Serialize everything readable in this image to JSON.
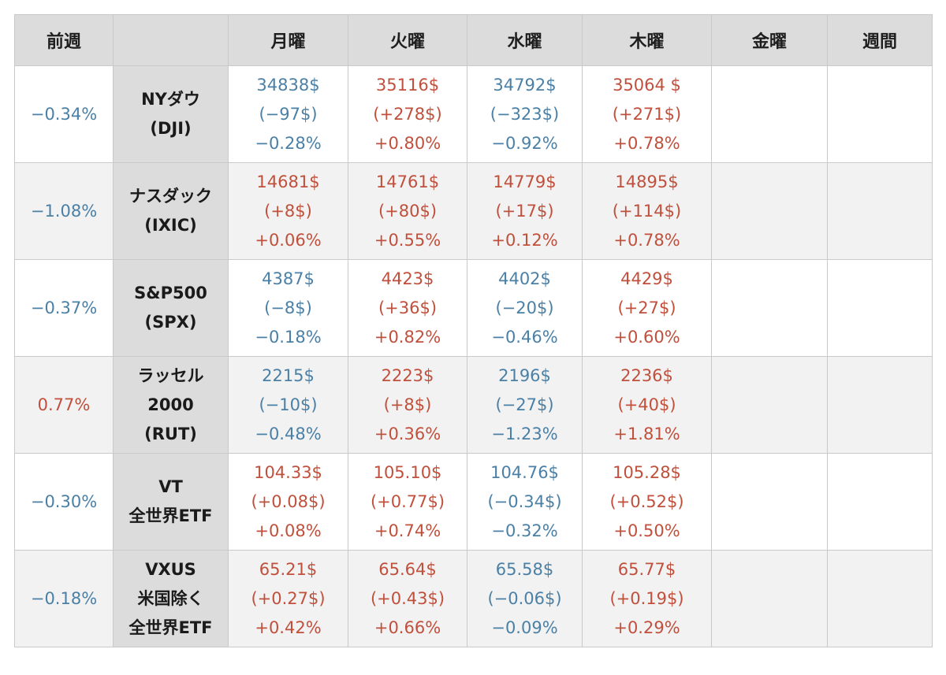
{
  "colors": {
    "negative": "#4b80a6",
    "positive": "#c0503c",
    "header_bg": "#dcdcdc"
  },
  "header": {
    "prev_week": "前週",
    "name": "",
    "days": [
      "月曜",
      "火曜",
      "水曜",
      "木曜",
      "金曜"
    ],
    "week": "週間"
  },
  "rows": [
    {
      "prev": {
        "text": "−0.34%",
        "dir": "neg"
      },
      "name": [
        "NYダウ",
        "(DJI)"
      ],
      "days": [
        {
          "dir": "neg",
          "lines": [
            "34838$",
            "(−97$)",
            "−0.28%"
          ]
        },
        {
          "dir": "pos",
          "lines": [
            "35116$",
            "(+278$)",
            "+0.80%"
          ]
        },
        {
          "dir": "neg",
          "lines": [
            "34792$",
            "(−323$)",
            "−0.92%"
          ]
        },
        {
          "dir": "pos",
          "lines": [
            "35064 $",
            "(+271$)",
            "+0.78%"
          ]
        },
        {
          "dir": "",
          "lines": []
        }
      ],
      "week": {
        "dir": "",
        "lines": []
      }
    },
    {
      "prev": {
        "text": "−1.08%",
        "dir": "neg"
      },
      "name": [
        "ナスダック",
        "(IXIC)"
      ],
      "days": [
        {
          "dir": "pos",
          "lines": [
            "14681$",
            "(+8$)",
            "+0.06%"
          ]
        },
        {
          "dir": "pos",
          "lines": [
            "14761$",
            "(+80$)",
            "+0.55%"
          ]
        },
        {
          "dir": "pos",
          "lines": [
            "14779$",
            "(+17$)",
            "+0.12%"
          ]
        },
        {
          "dir": "pos",
          "lines": [
            "14895$",
            "(+114$)",
            "+0.78%"
          ]
        },
        {
          "dir": "",
          "lines": []
        }
      ],
      "week": {
        "dir": "",
        "lines": []
      }
    },
    {
      "prev": {
        "text": "−0.37%",
        "dir": "neg"
      },
      "name": [
        "S&P500",
        "(SPX)"
      ],
      "days": [
        {
          "dir": "neg",
          "lines": [
            "4387$",
            "(−8$)",
            "−0.18%"
          ]
        },
        {
          "dir": "pos",
          "lines": [
            "4423$",
            "(+36$)",
            "+0.82%"
          ]
        },
        {
          "dir": "neg",
          "lines": [
            "4402$",
            "(−20$)",
            "−0.46%"
          ]
        },
        {
          "dir": "pos",
          "lines": [
            "4429$",
            "(+27$)",
            "+0.60%"
          ]
        },
        {
          "dir": "",
          "lines": []
        }
      ],
      "week": {
        "dir": "",
        "lines": []
      }
    },
    {
      "prev": {
        "text": "0.77%",
        "dir": "pos"
      },
      "name": [
        "ラッセル",
        "2000",
        "(RUT)"
      ],
      "days": [
        {
          "dir": "neg",
          "lines": [
            "2215$",
            "(−10$)",
            "−0.48%"
          ]
        },
        {
          "dir": "pos",
          "lines": [
            "2223$",
            "(+8$)",
            "+0.36%"
          ]
        },
        {
          "dir": "neg",
          "lines": [
            "2196$",
            "(−27$)",
            "−1.23%"
          ]
        },
        {
          "dir": "pos",
          "lines": [
            "2236$",
            "(+40$)",
            "+1.81%"
          ]
        },
        {
          "dir": "",
          "lines": []
        }
      ],
      "week": {
        "dir": "",
        "lines": []
      }
    },
    {
      "prev": {
        "text": "−0.30%",
        "dir": "neg"
      },
      "name": [
        "VT",
        "全世界ETF"
      ],
      "days": [
        {
          "dir": "pos",
          "lines": [
            "104.33$",
            "(+0.08$)",
            "+0.08%"
          ]
        },
        {
          "dir": "pos",
          "lines": [
            "105.10$",
            "(+0.77$)",
            "+0.74%"
          ]
        },
        {
          "dir": "neg",
          "lines": [
            "104.76$",
            "(−0.34$)",
            "−0.32%"
          ]
        },
        {
          "dir": "pos",
          "lines": [
            "105.28$",
            "(+0.52$)",
            "+0.50%"
          ]
        },
        {
          "dir": "",
          "lines": []
        }
      ],
      "week": {
        "dir": "",
        "lines": []
      }
    },
    {
      "prev": {
        "text": "−0.18%",
        "dir": "neg"
      },
      "name": [
        "VXUS",
        "米国除く",
        "全世界ETF"
      ],
      "days": [
        {
          "dir": "pos",
          "lines": [
            "65.21$",
            "(+0.27$)",
            "+0.42%"
          ]
        },
        {
          "dir": "pos",
          "lines": [
            "65.64$",
            "(+0.43$)",
            "+0.66%"
          ]
        },
        {
          "dir": "neg",
          "lines": [
            "65.58$",
            "(−0.06$)",
            "−0.09%"
          ]
        },
        {
          "dir": "pos",
          "lines": [
            "65.77$",
            "(+0.19$)",
            "+0.29%"
          ]
        },
        {
          "dir": "",
          "lines": []
        }
      ],
      "week": {
        "dir": "",
        "lines": []
      }
    }
  ]
}
